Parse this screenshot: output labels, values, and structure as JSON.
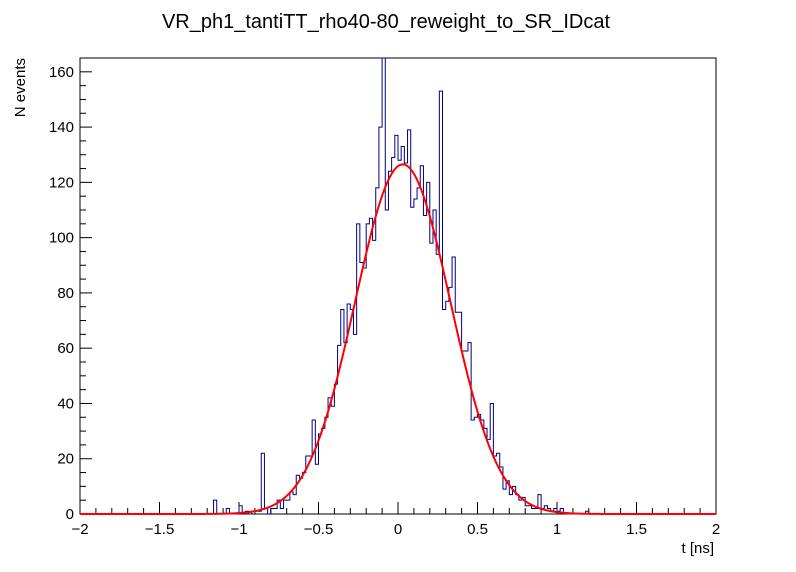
{
  "chart_data": {
    "type": "line",
    "title": "VR_ph1_tantiTT_rho40-80_reweight_to_SR_IDcat",
    "xlabel": "t [ns]",
    "ylabel": "N events",
    "xlim": [
      -2,
      2
    ],
    "ylim": [
      0,
      165
    ],
    "x_ticks": [
      -2,
      -1.5,
      -1,
      -0.5,
      0,
      0.5,
      1,
      1.5,
      2
    ],
    "x_tick_labels": [
      "−2",
      "−1.5",
      "−1",
      "−0.5",
      "0",
      "0.5",
      "1",
      "1.5",
      "2"
    ],
    "y_ticks": [
      0,
      20,
      40,
      60,
      80,
      100,
      120,
      140,
      160
    ],
    "y_tick_labels": [
      "0",
      "20",
      "40",
      "60",
      "80",
      "100",
      "120",
      "140",
      "160"
    ],
    "grid": false,
    "legend": "none",
    "series": [
      {
        "kind": "histogram",
        "color": "#00007f",
        "bin_edges": {
          "start": -2,
          "stop": 2,
          "nbins": 200
        },
        "notable_bins": [
          {
            "x": -1.155,
            "y": 5
          },
          {
            "x": -1.065,
            "y": 2
          },
          {
            "x": -0.985,
            "y": 3
          },
          {
            "x": -0.855,
            "y": 22
          },
          {
            "x": -0.745,
            "y": 5
          },
          {
            "x": -0.525,
            "y": 34
          },
          {
            "x": -0.345,
            "y": 74
          },
          {
            "x": -0.255,
            "y": 105
          },
          {
            "x": -0.115,
            "y": 140
          },
          {
            "x": -0.095,
            "y": 165
          },
          {
            "x": 0.055,
            "y": 127
          },
          {
            "x": 0.265,
            "y": 153
          },
          {
            "x": 0.355,
            "y": 93
          },
          {
            "x": 0.455,
            "y": 62
          },
          {
            "x": 0.585,
            "y": 40
          },
          {
            "x": 0.885,
            "y": 7
          },
          {
            "x": 1.025,
            "y": 2
          },
          {
            "x": 1.185,
            "y": 1
          }
        ]
      },
      {
        "kind": "fit",
        "color": "#ff0000",
        "model": "gaussian",
        "amplitude": 126.5,
        "mean": 0.03,
        "sigma": 0.3
      }
    ]
  }
}
